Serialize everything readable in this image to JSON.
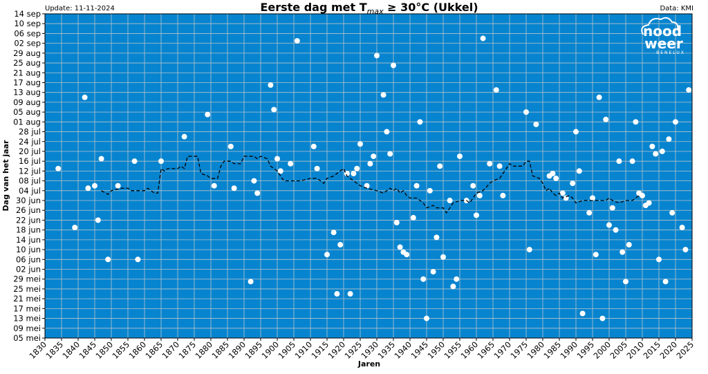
{
  "chart_data": {
    "type": "scatter",
    "title": [
      "Eerste dag met T",
      "max",
      " ≥ 30°C (Ukkel)"
    ],
    "update": "Update: 11-11-2024",
    "source": "Data: KMI",
    "logo": [
      "nood",
      "weer",
      "BENELUX"
    ],
    "xlabel": "Jaren",
    "ylabel": "Dag van het jaar",
    "background": "#0784cf",
    "grid": true,
    "xlim": [
      1830,
      2025
    ],
    "xticks": [
      1830,
      1835,
      1840,
      1845,
      1850,
      1855,
      1860,
      1865,
      1870,
      1875,
      1880,
      1885,
      1890,
      1895,
      1900,
      1905,
      1910,
      1915,
      1920,
      1925,
      1930,
      1935,
      1940,
      1945,
      1950,
      1955,
      1960,
      1965,
      1970,
      1975,
      1980,
      1985,
      1990,
      1995,
      2000,
      2005,
      2010,
      2015,
      2020,
      2025
    ],
    "ylim": [
      125,
      257
    ],
    "yticks": [
      {
        "value": 125,
        "label": "05 mei"
      },
      {
        "value": 129,
        "label": "09 mei"
      },
      {
        "value": 133,
        "label": "13 mei"
      },
      {
        "value": 137,
        "label": "17 mei"
      },
      {
        "value": 141,
        "label": "21 mei"
      },
      {
        "value": 145,
        "label": "25 mei"
      },
      {
        "value": 149,
        "label": "29 mei"
      },
      {
        "value": 153,
        "label": "02 jun"
      },
      {
        "value": 157,
        "label": "06 jun"
      },
      {
        "value": 161,
        "label": "10 jun"
      },
      {
        "value": 165,
        "label": "14 jun"
      },
      {
        "value": 169,
        "label": "18 jun"
      },
      {
        "value": 173,
        "label": "22 jun"
      },
      {
        "value": 177,
        "label": "26 jun"
      },
      {
        "value": 181,
        "label": "30 jun"
      },
      {
        "value": 185,
        "label": "04 jul"
      },
      {
        "value": 189,
        "label": "08 jul"
      },
      {
        "value": 193,
        "label": "12 jul"
      },
      {
        "value": 197,
        "label": "16 jul"
      },
      {
        "value": 201,
        "label": "20 jul"
      },
      {
        "value": 205,
        "label": "24 jul"
      },
      {
        "value": 209,
        "label": "28 jul"
      },
      {
        "value": 213,
        "label": "01 aug"
      },
      {
        "value": 217,
        "label": "05 aug"
      },
      {
        "value": 221,
        "label": "09 aug"
      },
      {
        "value": 225,
        "label": "13 aug"
      },
      {
        "value": 229,
        "label": "17 aug"
      },
      {
        "value": 233,
        "label": "21 aug"
      },
      {
        "value": 237,
        "label": "25 aug"
      },
      {
        "value": 241,
        "label": "29 aug"
      },
      {
        "value": 245,
        "label": "02 sep"
      },
      {
        "value": 249,
        "label": "06 sep"
      },
      {
        "value": 253,
        "label": "10 sep"
      },
      {
        "value": 257,
        "label": "14 sep"
      }
    ],
    "series": [
      {
        "type": "scatter",
        "color": "#ffffff",
        "x": [
          1834,
          1839,
          1842,
          1843,
          1845,
          1846,
          1847,
          1849,
          1852,
          1857,
          1858,
          1865,
          1872,
          1879,
          1881,
          1886,
          1887,
          1892,
          1893,
          1894,
          1898,
          1899,
          1900,
          1901,
          1904,
          1906,
          1911,
          1912,
          1915,
          1917,
          1918,
          1919,
          1921,
          1922,
          1923,
          1924,
          1925,
          1927,
          1928,
          1929,
          1930,
          1932,
          1933,
          1934,
          1935,
          1936,
          1937,
          1938,
          1939,
          1941,
          1942,
          1943,
          1944,
          1945,
          1946,
          1947,
          1948,
          1949,
          1950,
          1952,
          1953,
          1954,
          1955,
          1957,
          1959,
          1960,
          1961,
          1962,
          1964,
          1966,
          1967,
          1968,
          1975,
          1976,
          1978,
          1982,
          1983,
          1984,
          1986,
          1987,
          1989,
          1990,
          1991,
          1992,
          1994,
          1995,
          1996,
          1997,
          1998,
          1999,
          2000,
          2001,
          2002,
          2003,
          2004,
          2005,
          2006,
          2007,
          2008,
          2009,
          2010,
          2011,
          2012,
          2013,
          2014,
          2015,
          2016,
          2017,
          2018,
          2019,
          2020,
          2022,
          2023,
          2024
        ],
        "values": [
          194,
          170,
          223,
          186,
          187,
          173,
          198,
          157,
          187,
          197,
          157,
          197,
          207,
          216,
          187,
          203,
          186,
          148,
          189,
          184,
          228,
          218,
          198,
          193,
          196,
          246,
          203,
          194,
          159,
          168,
          143,
          163,
          192,
          143,
          192,
          194,
          204,
          187,
          196,
          199,
          240,
          224,
          209,
          200,
          236,
          172,
          162,
          160,
          159,
          174,
          187,
          213,
          149,
          133,
          185,
          152,
          166,
          195,
          158,
          181,
          146,
          149,
          199,
          181,
          187,
          175,
          183,
          247,
          196,
          226,
          195,
          183,
          217,
          161,
          212,
          191,
          192,
          190,
          184,
          182,
          188,
          209,
          193,
          135,
          176,
          182,
          159,
          223,
          133,
          214,
          171,
          178,
          169,
          197,
          160,
          148,
          163,
          197,
          213,
          184,
          183,
          179,
          180,
          203,
          200,
          157,
          201,
          148,
          206,
          176,
          213,
          170,
          161,
          226
        ]
      },
      {
        "type": "line",
        "color": "#000000",
        "dashed": true,
        "x": [
          1847,
          1849,
          1850,
          1853,
          1855,
          1856,
          1860,
          1861,
          1862,
          1863,
          1864,
          1865,
          1866,
          1867,
          1870,
          1871,
          1872,
          1873,
          1876,
          1877,
          1879,
          1880,
          1882,
          1883,
          1884,
          1886,
          1887,
          1889,
          1890,
          1893,
          1894,
          1895,
          1897,
          1898,
          1900,
          1902,
          1904,
          1907,
          1910,
          1912,
          1914,
          1915,
          1917,
          1919,
          1920,
          1921,
          1923,
          1925,
          1927,
          1930,
          1932,
          1933,
          1934,
          1935,
          1936,
          1937,
          1938,
          1939,
          1940,
          1942,
          1943,
          1944,
          1945,
          1947,
          1948,
          1950,
          1951,
          1952,
          1953,
          1955,
          1957,
          1958,
          1960,
          1962,
          1964,
          1965,
          1967,
          1969,
          1970,
          1971,
          1974,
          1975,
          1976,
          1977,
          1979,
          1980,
          1981,
          1982,
          1983,
          1984,
          1985,
          1986,
          1988,
          1989,
          1990,
          1992,
          1995,
          1999,
          2000,
          2001,
          2003,
          2005,
          2007,
          2008,
          2009
        ],
        "values": [
          185,
          183.5,
          185,
          186,
          186,
          185,
          185,
          186,
          185,
          184,
          184,
          194,
          193,
          194,
          194,
          195,
          194,
          199,
          199,
          192,
          191,
          190,
          190,
          195,
          197,
          197,
          196,
          196,
          199,
          199,
          198,
          199,
          198,
          195,
          193,
          189,
          189,
          189,
          190,
          190,
          188,
          190,
          191,
          193,
          194,
          191,
          189,
          187,
          186,
          185,
          184,
          185,
          186,
          185,
          186,
          184,
          185,
          183,
          182,
          182,
          181,
          180,
          178,
          179,
          178,
          178,
          176,
          178,
          180,
          181,
          181,
          180,
          184,
          185,
          188,
          189,
          190,
          194,
          196,
          195,
          195,
          197,
          197,
          191,
          190,
          188,
          185,
          186,
          184,
          183,
          184,
          182,
          183,
          182,
          180,
          181,
          181,
          181,
          182,
          181,
          180,
          181,
          181,
          182,
          183
        ]
      }
    ]
  }
}
